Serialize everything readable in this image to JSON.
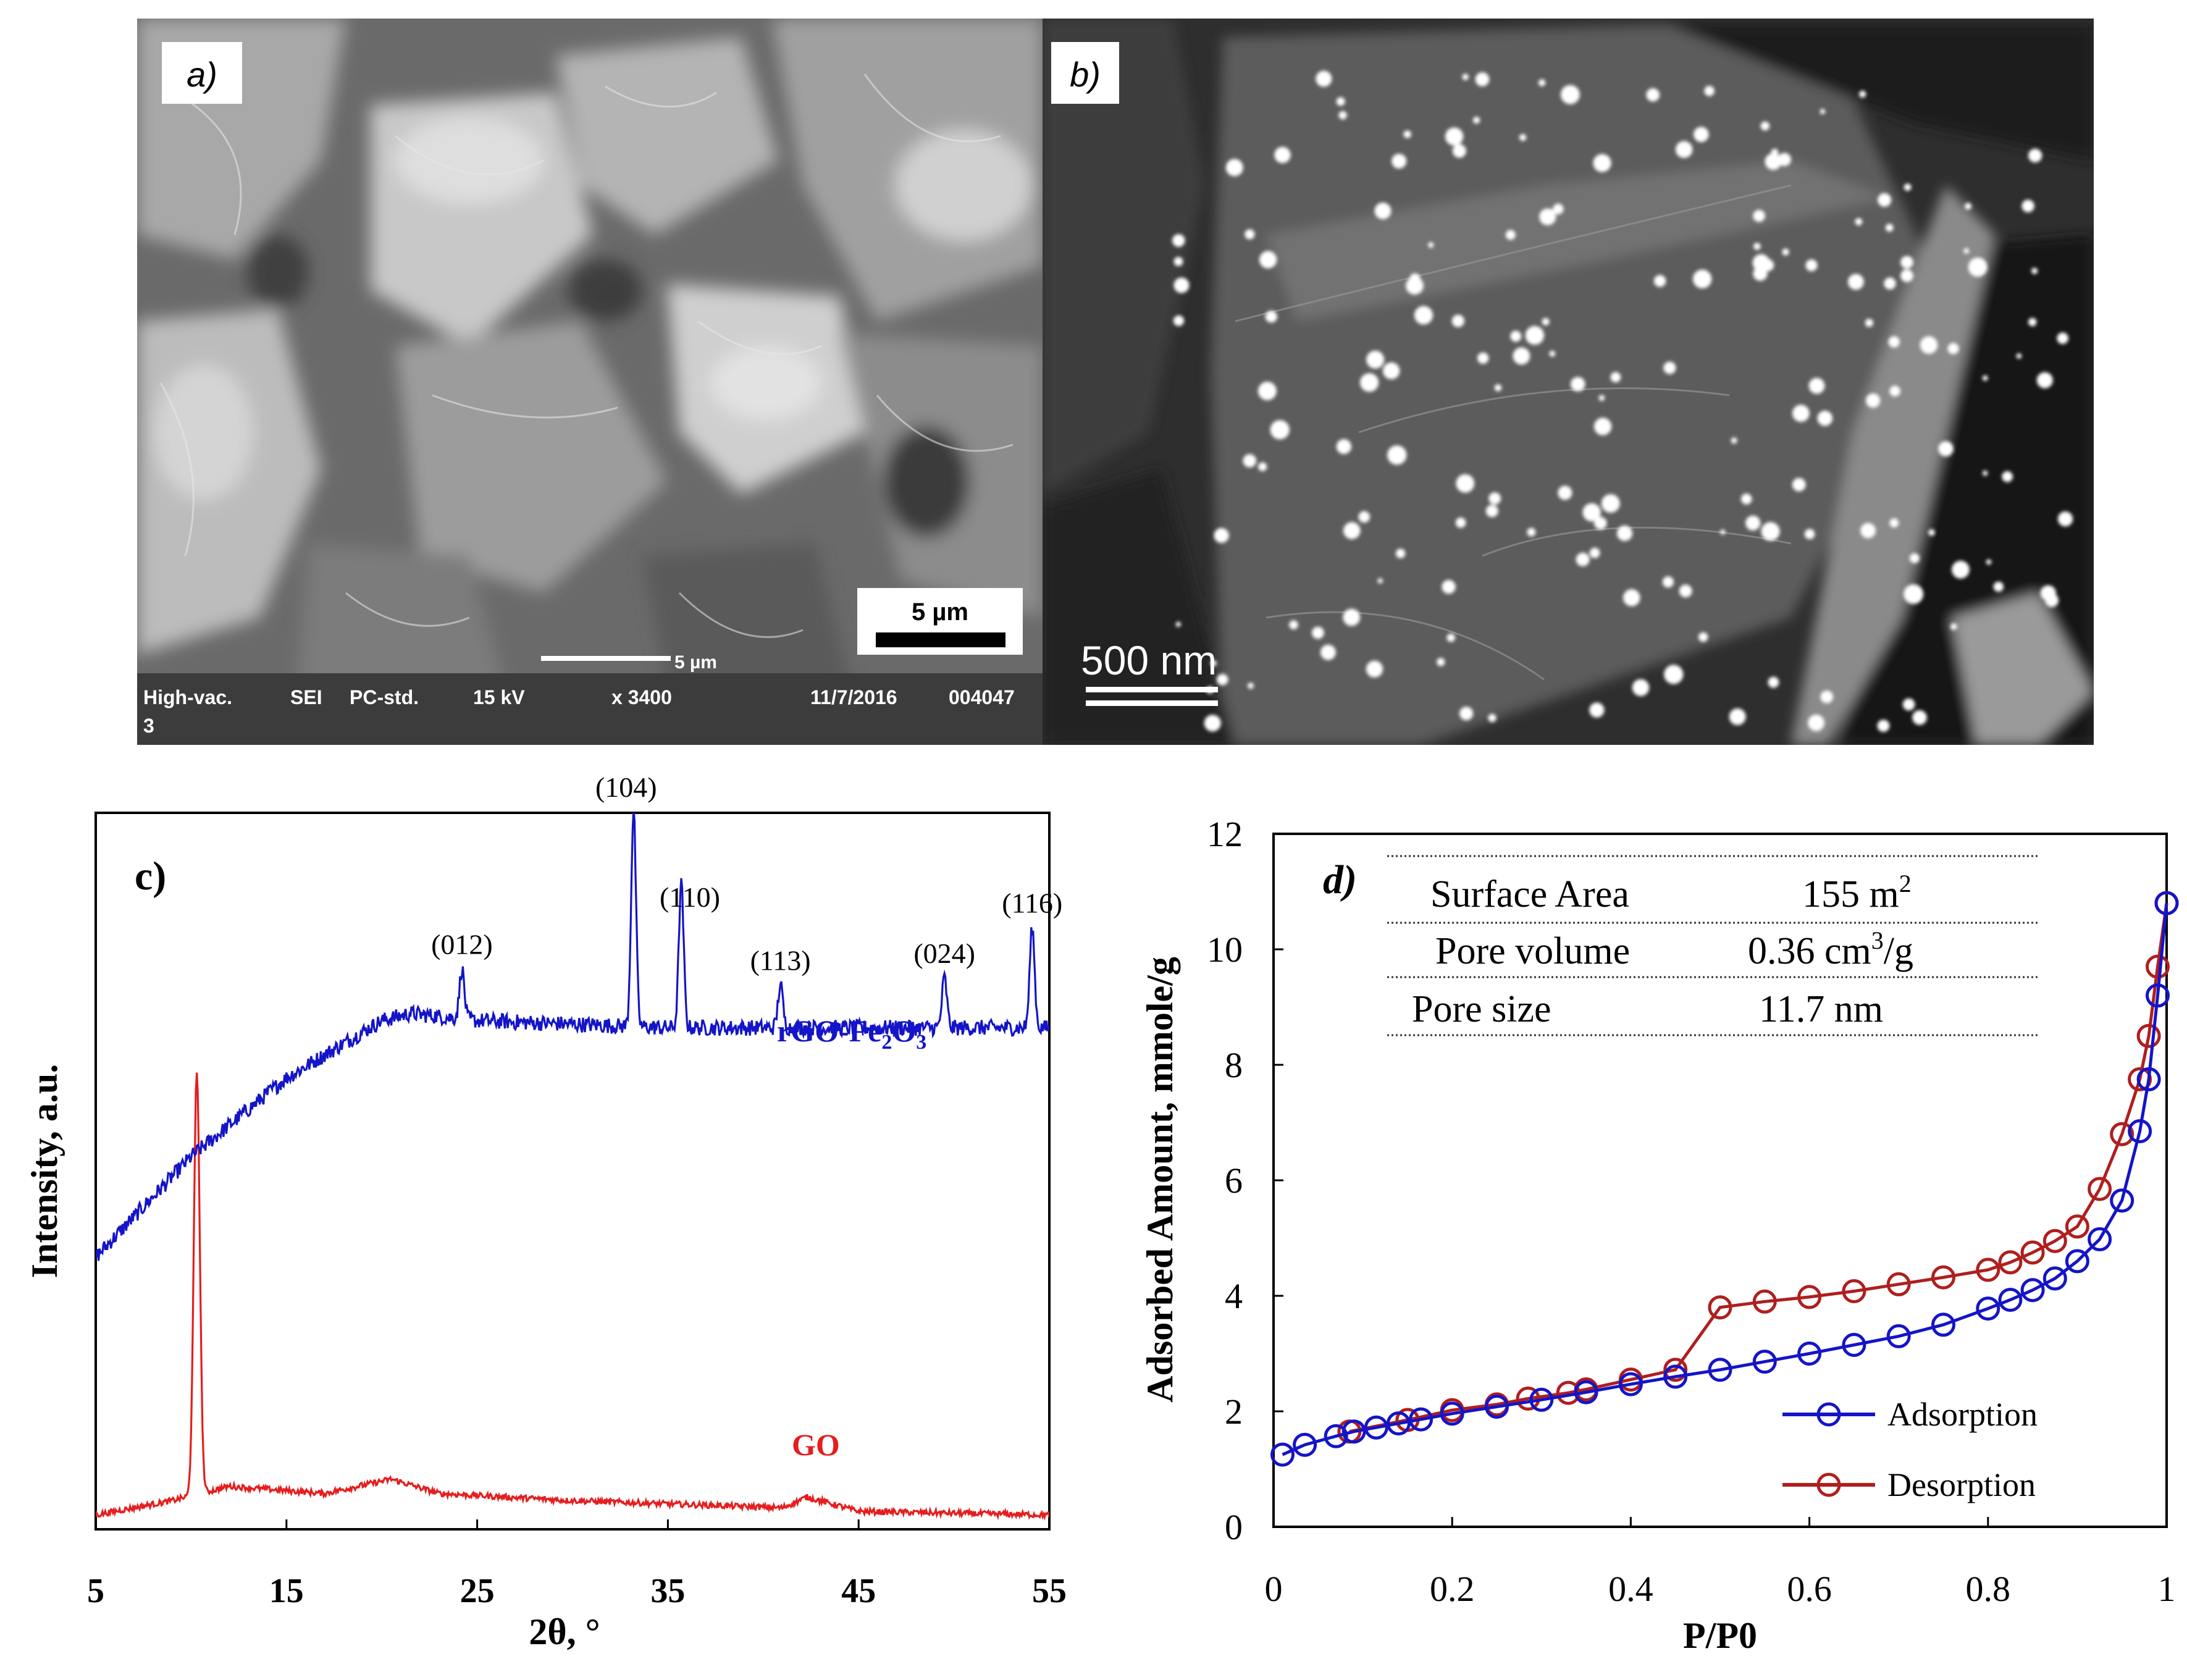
{
  "panel_a": {
    "label": "a)",
    "scale_box": "5 µm",
    "scale_line_label": "5 µm",
    "info": [
      "High-vac.",
      "SEI",
      "PC-std.",
      "15 kV",
      "x 3400",
      "11/7/2016",
      "004047"
    ],
    "info_line2": "3"
  },
  "panel_b": {
    "label": "b)",
    "scale_label": "500 nm"
  },
  "colors": {
    "blue": "#1414c8",
    "red": "#e41e1e",
    "dark_red": "#b01e1e"
  },
  "chart_data": [
    {
      "type": "line",
      "panel_label": "c)",
      "xlabel": "2θ, °",
      "ylabel": "Intensity, a.u.",
      "xlim": [
        5,
        55
      ],
      "xticks": [
        5,
        15,
        25,
        35,
        45,
        55
      ],
      "series": [
        {
          "name": "rGO-Fe2O3",
          "label_main": "rGO-Fe",
          "label_sub1": "2",
          "label_mid": "O",
          "label_sub2": "3",
          "color": "#1414c8",
          "baseline": [
            [
              5,
              0.38
            ],
            [
              10,
              0.52
            ],
            [
              15,
              0.63
            ],
            [
              20,
              0.71
            ],
            [
              21.5,
              0.72
            ],
            [
              25,
              0.71
            ],
            [
              35,
              0.7
            ],
            [
              45,
              0.7
            ],
            [
              55,
              0.7
            ]
          ],
          "peaks": [
            {
              "x": 24.2,
              "h": 0.07,
              "label": "(012)"
            },
            {
              "x": 33.2,
              "h": 0.3,
              "label": "(104)"
            },
            {
              "x": 35.7,
              "h": 0.2,
              "label": "(110)"
            },
            {
              "x": 40.9,
              "h": 0.06,
              "label": "(113)"
            },
            {
              "x": 49.5,
              "h": 0.07,
              "label": "(024)"
            },
            {
              "x": 54.1,
              "h": 0.14,
              "label": "(116)"
            }
          ]
        },
        {
          "name": "GO",
          "label": "GO",
          "color": "#e41e1e",
          "baseline": [
            [
              5,
              0.02
            ],
            [
              9,
              0.04
            ],
            [
              12,
              0.06
            ],
            [
              17,
              0.05
            ],
            [
              20.5,
              0.07
            ],
            [
              23,
              0.05
            ],
            [
              30,
              0.04
            ],
            [
              41,
              0.03
            ],
            [
              42.3,
              0.045
            ],
            [
              45,
              0.025
            ],
            [
              55,
              0.02
            ]
          ],
          "peaks": [
            {
              "x": 10.3,
              "h": 0.59
            }
          ]
        }
      ]
    },
    {
      "type": "line",
      "panel_label": "d)",
      "xlabel": "P/P0",
      "ylabel": "Adsorbed Amount, mmole/g",
      "xlim": [
        0,
        1
      ],
      "ylim": [
        0,
        12
      ],
      "xticks": [
        "0",
        "0.2",
        "0.4",
        "0.6",
        "0.8",
        "1"
      ],
      "yticks": [
        "0",
        "2",
        "4",
        "6",
        "8",
        "10",
        "12"
      ],
      "series": [
        {
          "name": "Adsorption",
          "color": "#1414c8",
          "x": [
            0.01,
            0.035,
            0.07,
            0.09,
            0.115,
            0.14,
            0.165,
            0.2,
            0.25,
            0.3,
            0.35,
            0.4,
            0.45,
            0.5,
            0.55,
            0.6,
            0.65,
            0.7,
            0.75,
            0.8,
            0.825,
            0.85,
            0.875,
            0.9,
            0.925,
            0.95,
            0.97,
            0.98,
            0.99,
            1.0
          ],
          "y": [
            1.25,
            1.42,
            1.57,
            1.65,
            1.72,
            1.79,
            1.86,
            1.96,
            2.08,
            2.2,
            2.33,
            2.47,
            2.6,
            2.72,
            2.86,
            3.0,
            3.15,
            3.3,
            3.5,
            3.78,
            3.93,
            4.1,
            4.3,
            4.6,
            4.98,
            5.65,
            6.85,
            7.75,
            9.2,
            10.8
          ]
        },
        {
          "name": "Desorption",
          "color": "#b01e1e",
          "x": [
            1.0,
            0.99,
            0.98,
            0.97,
            0.95,
            0.925,
            0.9,
            0.875,
            0.85,
            0.825,
            0.8,
            0.75,
            0.7,
            0.65,
            0.6,
            0.55,
            0.5,
            0.45,
            0.4,
            0.35,
            0.33,
            0.285,
            0.25,
            0.2,
            0.15,
            0.085
          ],
          "y": [
            10.8,
            9.7,
            8.5,
            7.75,
            6.8,
            5.85,
            5.2,
            4.95,
            4.75,
            4.58,
            4.45,
            4.32,
            4.2,
            4.08,
            3.98,
            3.9,
            3.8,
            2.72,
            2.55,
            2.38,
            2.32,
            2.22,
            2.12,
            2.02,
            1.85,
            1.65
          ]
        }
      ],
      "table": {
        "rows": [
          {
            "label": "Surface Area",
            "value": "155 m",
            "sup": "2",
            "tail": ""
          },
          {
            "label": "Pore volume",
            "value": "0.36 cm",
            "sup": "3",
            "tail": "/g"
          },
          {
            "label": "Pore size",
            "value": "11.7 nm",
            "sup": "",
            "tail": ""
          }
        ]
      },
      "legend": [
        "Adsorption",
        "Desorption"
      ]
    }
  ]
}
